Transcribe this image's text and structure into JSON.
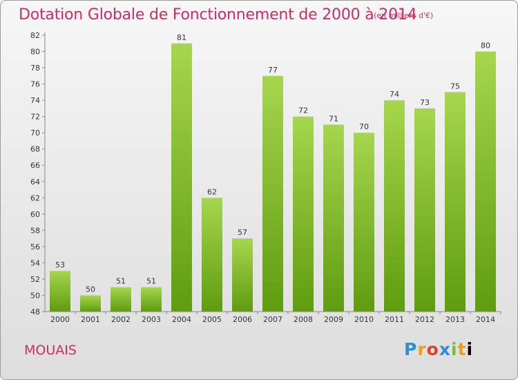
{
  "header": {
    "title": "Dotation Globale de Fonctionnement de 2000 à 2014",
    "unit_note": "(en milliers d'€)"
  },
  "footer": {
    "town": "MOUAIS",
    "logo": [
      "P",
      "r",
      "o",
      "x",
      "i",
      "t",
      "i"
    ]
  },
  "colors": {
    "bar_light": "#a6d64e",
    "bar_dark": "#5f9c0f",
    "title": "#cc2a6a"
  },
  "chart_data": {
    "type": "bar",
    "categories": [
      "2000",
      "2001",
      "2002",
      "2003",
      "2004",
      "2005",
      "2006",
      "2007",
      "2008",
      "2009",
      "2010",
      "2011",
      "2012",
      "2013",
      "2014"
    ],
    "values": [
      53,
      50,
      51,
      51,
      81,
      62,
      57,
      77,
      72,
      71,
      70,
      74,
      73,
      75,
      80
    ],
    "ylim": [
      48,
      82
    ],
    "yticks": [
      48,
      50,
      52,
      54,
      56,
      58,
      60,
      62,
      64,
      66,
      68,
      70,
      72,
      74,
      76,
      78,
      80,
      82
    ],
    "grid": false,
    "data_labels": true
  }
}
